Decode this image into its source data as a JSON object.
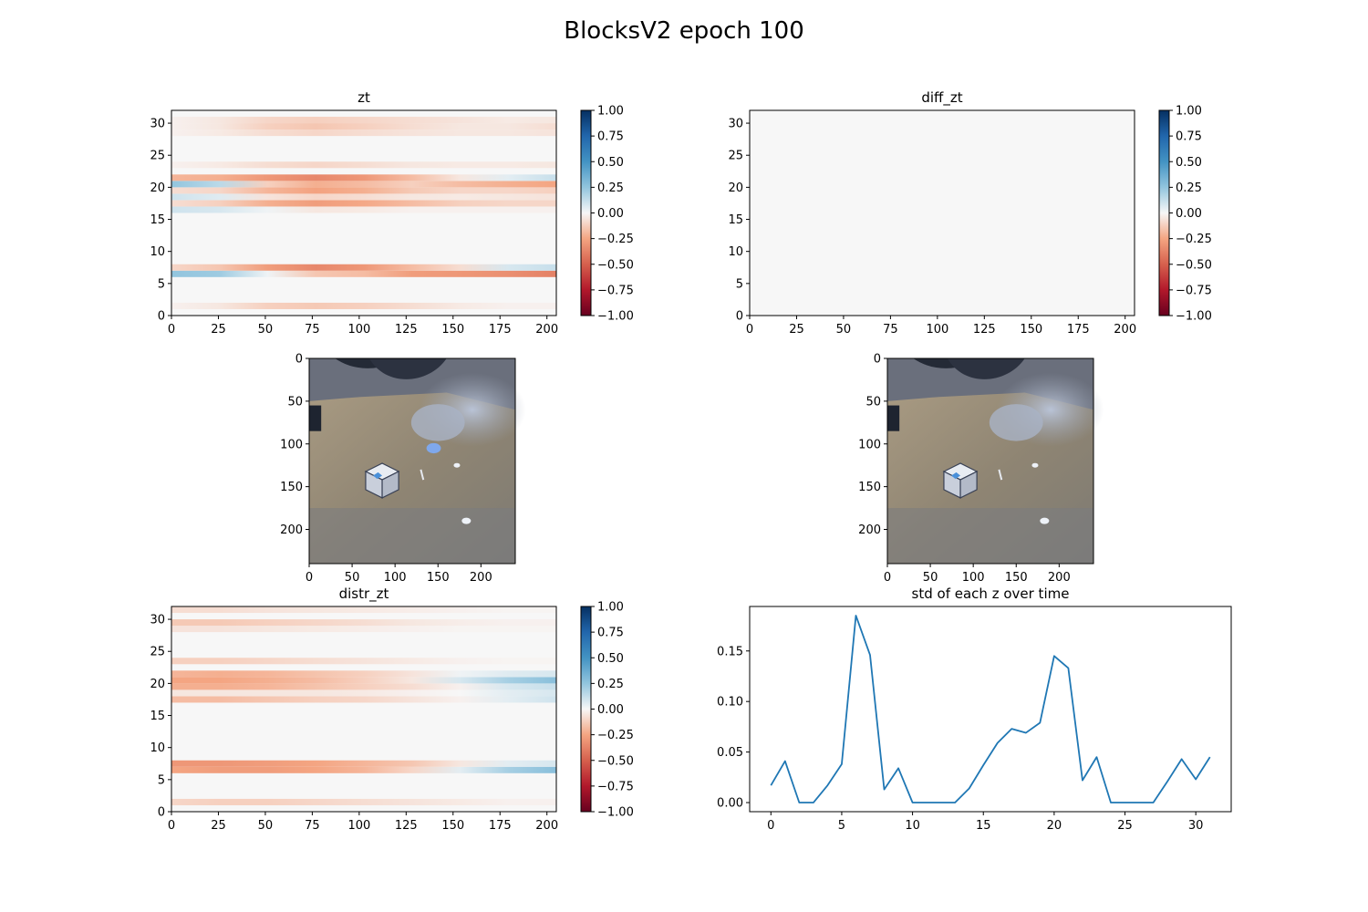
{
  "figure": {
    "title": "BlocksV2 epoch 100"
  },
  "colors": {
    "negative": "#67001f",
    "neg_mid": "#d6604d",
    "neutral": "#f7f7f7",
    "pos_mid": "#4393c3",
    "positive": "#053061",
    "line": "#1f77b4"
  },
  "chart_data": [
    {
      "id": "zt",
      "type": "heatmap",
      "title": "zt",
      "xlim": [
        0,
        205
      ],
      "ylim": [
        0,
        32
      ],
      "xticks": [
        0,
        25,
        50,
        75,
        100,
        125,
        150,
        175,
        200
      ],
      "yticks": [
        0,
        5,
        10,
        15,
        20,
        25,
        30
      ],
      "colorbar": {
        "range": [
          -1.0,
          1.0
        ],
        "ticks": [
          "1.00",
          "0.75",
          "0.50",
          "0.25",
          "0.00",
          "−0.25",
          "−0.50",
          "−0.75",
          "−1.00"
        ],
        "colormap": "RdBu"
      },
      "rows": [
        {
          "z": 1,
          "values": [
            -0.02,
            -0.05,
            -0.12,
            -0.14,
            -0.12,
            -0.08,
            -0.04,
            -0.02,
            -0.02
          ]
        },
        {
          "z": 6,
          "values": [
            0.25,
            0.22,
            0.02,
            -0.15,
            -0.18,
            -0.28,
            -0.3,
            -0.33,
            -0.38
          ]
        },
        {
          "z": 7,
          "values": [
            -0.1,
            -0.15,
            -0.28,
            -0.36,
            -0.3,
            -0.18,
            -0.08,
            0.08,
            0.12
          ]
        },
        {
          "z": 16,
          "values": [
            0.1,
            0.08,
            0.02,
            -0.05,
            -0.04,
            -0.02,
            -0.02,
            -0.02,
            -0.02
          ]
        },
        {
          "z": 17,
          "values": [
            -0.08,
            -0.12,
            -0.22,
            -0.28,
            -0.24,
            -0.18,
            -0.12,
            -0.1,
            -0.1
          ]
        },
        {
          "z": 18,
          "values": [
            0.1,
            0.06,
            -0.06,
            -0.1,
            -0.08,
            -0.05,
            -0.04,
            -0.05,
            -0.06
          ]
        },
        {
          "z": 19,
          "values": [
            -0.08,
            -0.1,
            -0.2,
            -0.26,
            -0.22,
            -0.14,
            -0.1,
            -0.1,
            -0.12
          ]
        },
        {
          "z": 20,
          "values": [
            0.25,
            0.15,
            -0.12,
            -0.22,
            -0.18,
            -0.12,
            -0.18,
            -0.22,
            -0.25
          ]
        },
        {
          "z": 21,
          "values": [
            -0.2,
            -0.22,
            -0.3,
            -0.36,
            -0.3,
            -0.18,
            -0.05,
            0.05,
            0.12
          ]
        },
        {
          "z": 23,
          "values": [
            -0.02,
            -0.04,
            -0.08,
            -0.1,
            -0.08,
            -0.05,
            -0.04,
            -0.04,
            -0.05
          ]
        },
        {
          "z": 28,
          "values": [
            -0.02,
            -0.04,
            -0.08,
            -0.1,
            -0.08,
            -0.06,
            -0.05,
            -0.05,
            -0.06
          ]
        },
        {
          "z": 29,
          "values": [
            -0.02,
            -0.05,
            -0.12,
            -0.15,
            -0.12,
            -0.08,
            -0.05,
            -0.05,
            -0.08
          ]
        },
        {
          "z": 30,
          "values": [
            -0.02,
            -0.05,
            -0.1,
            -0.12,
            -0.1,
            -0.08,
            -0.06,
            -0.04,
            -0.05
          ]
        }
      ]
    },
    {
      "id": "diff_zt",
      "type": "heatmap",
      "title": "diff_zt",
      "xlim": [
        0,
        205
      ],
      "ylim": [
        0,
        32
      ],
      "xticks": [
        0,
        25,
        50,
        75,
        100,
        125,
        150,
        175,
        200
      ],
      "yticks": [
        0,
        5,
        10,
        15,
        20,
        25,
        30
      ],
      "colorbar": {
        "range": [
          -1.0,
          1.0
        ],
        "ticks": [
          "1.00",
          "0.75",
          "0.50",
          "0.25",
          "0.00",
          "−0.25",
          "−0.50",
          "−0.75",
          "−1.00"
        ],
        "colormap": "RdBu"
      },
      "rows": []
    },
    {
      "id": "frame_left",
      "type": "image",
      "xlim": [
        0,
        240
      ],
      "ylim": [
        240,
        0
      ],
      "xticks": [
        0,
        50,
        100,
        150,
        200
      ],
      "yticks": [
        0,
        50,
        100,
        150,
        200
      ]
    },
    {
      "id": "frame_right",
      "type": "image",
      "xlim": [
        0,
        240
      ],
      "ylim": [
        240,
        0
      ],
      "xticks": [
        0,
        50,
        100,
        150,
        200
      ],
      "yticks": [
        0,
        50,
        100,
        150,
        200
      ]
    },
    {
      "id": "distr_zt",
      "type": "heatmap",
      "title": "distr_zt",
      "xlim": [
        0,
        205
      ],
      "ylim": [
        0,
        32
      ],
      "xticks": [
        0,
        25,
        50,
        75,
        100,
        125,
        150,
        175,
        200
      ],
      "yticks": [
        0,
        5,
        10,
        15,
        20,
        25,
        30
      ],
      "colorbar": {
        "range": [
          -1.0,
          1.0
        ],
        "ticks": [
          "1.00",
          "0.75",
          "0.50",
          "0.25",
          "0.00",
          "−0.25",
          "−0.50",
          "−0.75",
          "−1.00"
        ],
        "colormap": "RdBu"
      },
      "rows": [
        {
          "z": 1,
          "values": [
            -0.1,
            -0.12,
            -0.12,
            -0.1,
            -0.08,
            -0.06,
            -0.04,
            -0.02,
            -0.02
          ]
        },
        {
          "z": 6,
          "values": [
            -0.25,
            -0.28,
            -0.28,
            -0.25,
            -0.2,
            -0.1,
            0.05,
            0.2,
            0.28
          ]
        },
        {
          "z": 7,
          "values": [
            -0.3,
            -0.3,
            -0.28,
            -0.25,
            -0.2,
            -0.15,
            -0.05,
            0.05,
            0.08
          ]
        },
        {
          "z": 17,
          "values": [
            -0.18,
            -0.18,
            -0.15,
            -0.12,
            -0.1,
            -0.06,
            -0.02,
            0.05,
            0.1
          ]
        },
        {
          "z": 18,
          "values": [
            -0.05,
            -0.05,
            -0.05,
            -0.05,
            -0.04,
            -0.02,
            0.0,
            0.05,
            0.08
          ]
        },
        {
          "z": 19,
          "values": [
            -0.22,
            -0.22,
            -0.2,
            -0.16,
            -0.12,
            -0.08,
            -0.02,
            0.08,
            0.12
          ]
        },
        {
          "z": 20,
          "values": [
            -0.25,
            -0.25,
            -0.22,
            -0.18,
            -0.12,
            -0.05,
            0.08,
            0.2,
            0.28
          ]
        },
        {
          "z": 21,
          "values": [
            -0.2,
            -0.22,
            -0.2,
            -0.16,
            -0.12,
            -0.06,
            0.02,
            0.06,
            0.08
          ]
        },
        {
          "z": 23,
          "values": [
            -0.12,
            -0.12,
            -0.1,
            -0.08,
            -0.06,
            -0.04,
            -0.02,
            -0.01,
            -0.01
          ]
        },
        {
          "z": 28,
          "values": [
            -0.06,
            -0.06,
            -0.05,
            -0.04,
            -0.03,
            -0.02,
            -0.01,
            -0.01,
            -0.01
          ]
        },
        {
          "z": 29,
          "values": [
            -0.14,
            -0.14,
            -0.12,
            -0.1,
            -0.08,
            -0.05,
            -0.03,
            -0.02,
            -0.02
          ]
        },
        {
          "z": 31,
          "values": [
            -0.08,
            -0.08,
            -0.06,
            -0.05,
            -0.04,
            -0.03,
            -0.02,
            -0.01,
            -0.01
          ]
        }
      ]
    },
    {
      "id": "std_z",
      "type": "line",
      "title": "std of each z over time",
      "xlim": [
        -1.5,
        32.5
      ],
      "ylim": [
        -0.009,
        0.194
      ],
      "xticks": [
        0,
        5,
        10,
        15,
        20,
        25,
        30
      ],
      "yticks": [
        0.0,
        0.05,
        0.1,
        0.15
      ],
      "ytick_labels": [
        "0.00",
        "0.05",
        "0.10",
        "0.15"
      ],
      "x": [
        0,
        1,
        2,
        3,
        4,
        5,
        6,
        7,
        8,
        9,
        10,
        11,
        12,
        13,
        14,
        15,
        16,
        17,
        18,
        19,
        20,
        21,
        22,
        23,
        24,
        25,
        26,
        27,
        28,
        29,
        30,
        31
      ],
      "series": [
        {
          "values": [
            0.017,
            0.041,
            0.0,
            0.0,
            0.017,
            0.038,
            0.185,
            0.146,
            0.013,
            0.034,
            0.0,
            0.0,
            0.0,
            0.0,
            0.014,
            0.037,
            0.059,
            0.073,
            0.069,
            0.079,
            0.145,
            0.133,
            0.022,
            0.045,
            0.0,
            0.0,
            0.0,
            0.0,
            0.021,
            0.043,
            0.023,
            0.045
          ]
        }
      ]
    }
  ]
}
